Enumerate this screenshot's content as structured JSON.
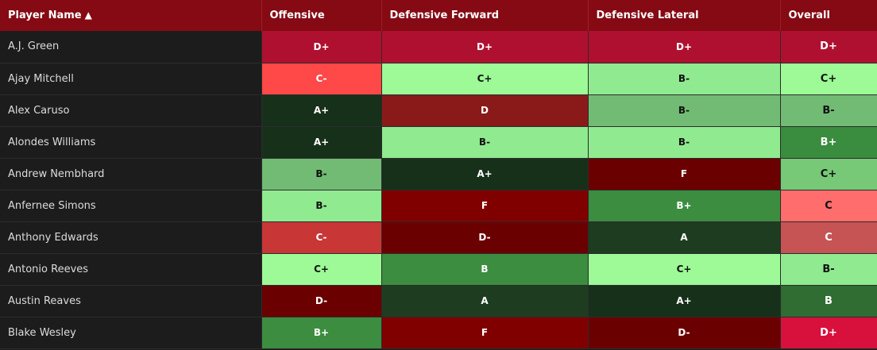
{
  "columns": [
    {
      "label": "Player Name",
      "sort": "▲"
    },
    {
      "label": "Offensive"
    },
    {
      "label": "Defensive Forward"
    },
    {
      "label": "Defensive Lateral"
    },
    {
      "label": "Overall"
    }
  ],
  "rows": [
    {
      "name": "A.J. Green",
      "off": "D+",
      "dfw": "D+",
      "dlat": "D+",
      "ovr": "D+",
      "colors": {
        "off": "#b01030",
        "dfw": "#b01030",
        "dlat": "#b01030",
        "ovr": "#b01030"
      }
    },
    {
      "name": "Ajay Mitchell",
      "off": "C-",
      "dfw": "C+",
      "dlat": "B-",
      "ovr": "C+",
      "colors": {
        "off": "#ff4848",
        "dfw": "#9dfa97",
        "dlat": "#90ea90",
        "ovr": "#9dfa97"
      }
    },
    {
      "name": "Alex Caruso",
      "off": "A+",
      "dfw": "D",
      "dlat": "B-",
      "ovr": "B-",
      "colors": {
        "off": "#17301a",
        "dfw": "#8a1a1a",
        "dlat": "#72bb74",
        "ovr": "#72bb74"
      }
    },
    {
      "name": "Alondes Williams",
      "off": "A+",
      "dfw": "B-",
      "dlat": "B-",
      "ovr": "B+",
      "colors": {
        "off": "#17301a",
        "dfw": "#90ea90",
        "dlat": "#90ea90",
        "ovr": "#3a8c3e"
      }
    },
    {
      "name": "Andrew Nembhard",
      "off": "B-",
      "dfw": "A+",
      "dlat": "F",
      "ovr": "C+",
      "colors": {
        "off": "#72bb74",
        "dfw": "#17301a",
        "dlat": "#6a0000",
        "ovr": "#77c877"
      }
    },
    {
      "name": "Anfernee Simons",
      "off": "B-",
      "dfw": "F",
      "dlat": "B+",
      "ovr": "C",
      "colors": {
        "off": "#90ea90",
        "dfw": "#800000",
        "dlat": "#3c8d40",
        "ovr": "#ff6d6d"
      }
    },
    {
      "name": "Anthony Edwards",
      "off": "C-",
      "dfw": "D-",
      "dlat": "A",
      "ovr": "C",
      "colors": {
        "off": "#c83636",
        "dfw": "#6b0000",
        "dlat": "#1e3c20",
        "ovr": "#c65454"
      }
    },
    {
      "name": "Antonio Reeves",
      "off": "C+",
      "dfw": "B",
      "dlat": "C+",
      "ovr": "B-",
      "colors": {
        "off": "#9dfa97",
        "dfw": "#3c8d40",
        "dlat": "#9dfa97",
        "ovr": "#90ea90"
      }
    },
    {
      "name": "Austin Reaves",
      "off": "D-",
      "dfw": "A",
      "dlat": "A+",
      "ovr": "B",
      "colors": {
        "off": "#6b0000",
        "dfw": "#1e3c20",
        "dlat": "#17301a",
        "ovr": "#2f6d32"
      }
    },
    {
      "name": "Blake Wesley",
      "off": "B+",
      "dfw": "F",
      "dlat": "D-",
      "ovr": "D+",
      "colors": {
        "off": "#3c8d40",
        "dfw": "#800000",
        "dlat": "#6b0000",
        "ovr": "#d8103c"
      }
    }
  ]
}
